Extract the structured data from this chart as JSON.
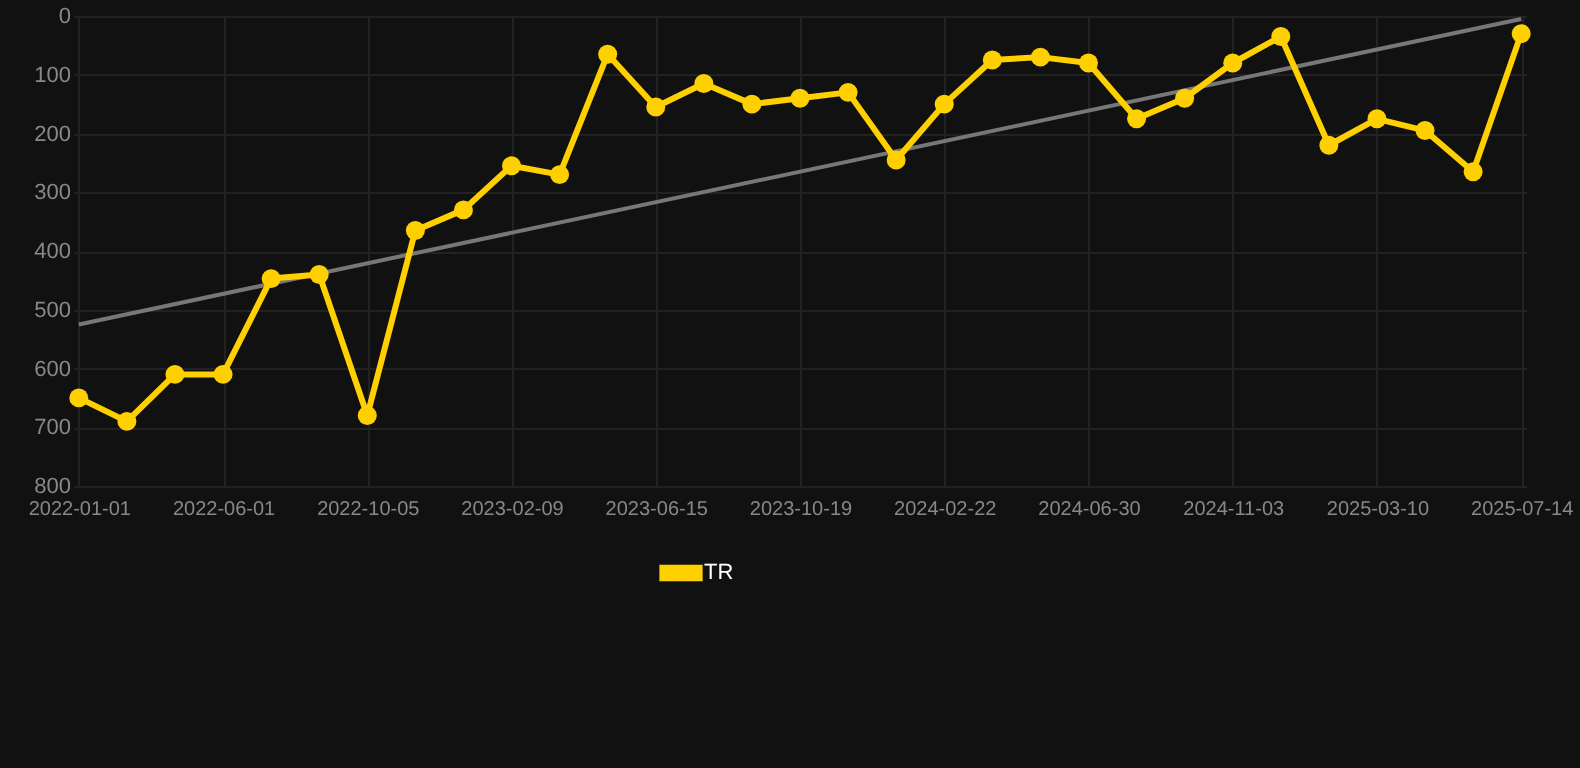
{
  "chart_data": {
    "type": "line",
    "categories": [
      "2022-01-01",
      null,
      null,
      "2022-06-01",
      null,
      null,
      "2022-10-05",
      null,
      null,
      "2023-02-09",
      null,
      null,
      "2023-06-15",
      null,
      null,
      "2023-10-19",
      null,
      null,
      "2024-02-22",
      null,
      null,
      "2024-06-30",
      null,
      null,
      "2024-11-03",
      null,
      null,
      "2025-03-10",
      null,
      null,
      "2025-07-14"
    ],
    "series": [
      {
        "type": "line",
        "color": "#777777",
        "values": [
          525,
          null,
          null,
          null,
          null,
          null,
          null,
          null,
          null,
          null,
          null,
          null,
          null,
          null,
          null,
          null,
          null,
          null,
          null,
          null,
          null,
          null,
          null,
          null,
          null,
          null,
          null,
          null,
          null,
          null,
          5
        ],
        "marker": "none"
      },
      {
        "name": "TR",
        "color": "#ffd000",
        "values": [
          650,
          690,
          610,
          610,
          447,
          440,
          680,
          365,
          330,
          255,
          270,
          65,
          155,
          115,
          150,
          140,
          130,
          245,
          150,
          75,
          70,
          80,
          175,
          140,
          80,
          35,
          220,
          175,
          195,
          265,
          30
        ]
      }
    ],
    "ylim": [
      800,
      0
    ],
    "yticks": [
      0,
      100,
      200,
      300,
      400,
      500,
      600,
      700,
      800
    ],
    "grid": true,
    "legend": "bottom",
    "marker": "circle"
  }
}
